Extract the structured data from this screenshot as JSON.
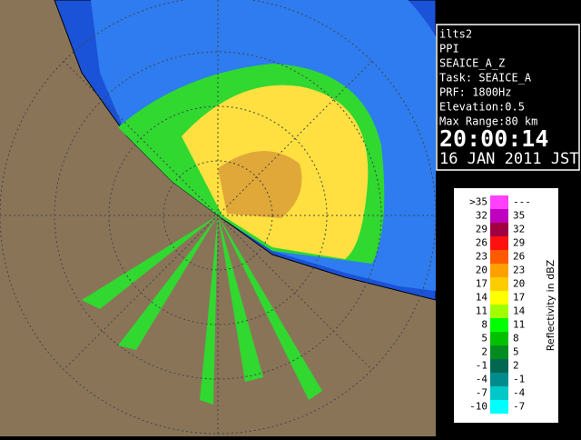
{
  "info": {
    "lines": [
      "ilts2",
      "PPI",
      "SEAICE_A_Z",
      "Task: SEAICE_A",
      "PRF: 1800Hz",
      "Elevation:0.5",
      "Max Range:80 km"
    ],
    "time": "20:00:14",
    "date": "16 JAN 2011 JST"
  },
  "legend": {
    "title": "Reflectivity in dBZ",
    "rows": [
      {
        "low": ">35",
        "high": "---",
        "color": "#ff40ff"
      },
      {
        "low": "32",
        "high": "35",
        "color": "#c000c0"
      },
      {
        "low": "29",
        "high": "32",
        "color": "#a00040"
      },
      {
        "low": "26",
        "high": "29",
        "color": "#ff1010"
      },
      {
        "low": "23",
        "high": "26",
        "color": "#ff5a00"
      },
      {
        "low": "20",
        "high": "23",
        "color": "#ffa000"
      },
      {
        "low": "17",
        "high": "20",
        "color": "#ffcc00"
      },
      {
        "low": "14",
        "high": "17",
        "color": "#ffff00"
      },
      {
        "low": "11",
        "high": "14",
        "color": "#a0ff00"
      },
      {
        "low": "8",
        "high": "11",
        "color": "#00ff00"
      },
      {
        "low": "5",
        "high": "8",
        "color": "#00c000"
      },
      {
        "low": "2",
        "high": "5",
        "color": "#008c20"
      },
      {
        "low": "-1",
        "high": "2",
        "color": "#006850"
      },
      {
        "low": "-4",
        "high": "-1",
        "color": "#008c8c"
      },
      {
        "low": "-7",
        "high": "-4",
        "color": "#00c8c8"
      },
      {
        "low": "-10",
        "high": "-7",
        "color": "#00ffff"
      }
    ]
  }
}
